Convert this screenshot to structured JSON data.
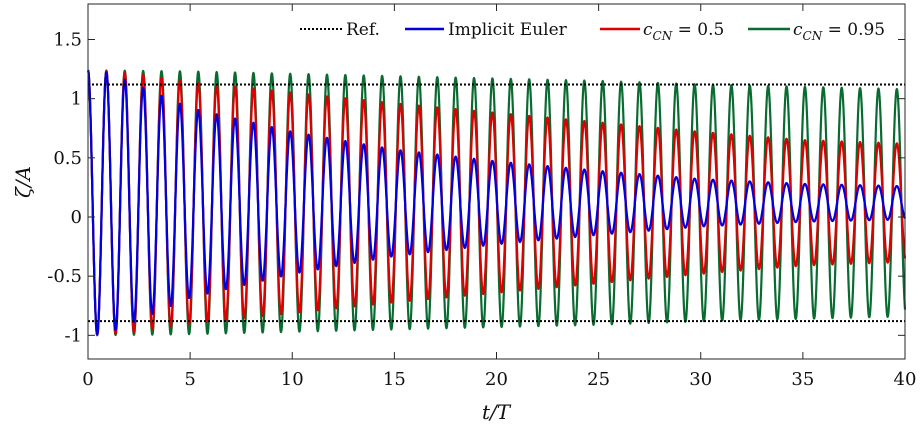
{
  "chart_data": {
    "type": "line",
    "xlabel": "t/T",
    "ylabel": "ζ/A",
    "xlim": [
      0,
      40
    ],
    "ylim": [
      -1.2,
      1.8
    ],
    "xticks": [
      "0",
      "5",
      "10",
      "15",
      "20",
      "25",
      "30",
      "35",
      "40"
    ],
    "yticks": [
      "-1",
      "-0.5",
      "0",
      "0.5",
      "1",
      "1.5"
    ],
    "grid": false,
    "legend_position": "top",
    "period": 0.9,
    "series": [
      {
        "name": "Ref.",
        "style": "dotted",
        "color": "#000000",
        "upper": 1.12,
        "lower": -0.88
      },
      {
        "name": "Implicit Euler",
        "color": "#0000dd",
        "envelope": [
          [
            0,
            1.12
          ],
          [
            1,
            1.1
          ],
          [
            3,
            0.95
          ],
          [
            5,
            0.8
          ],
          [
            7,
            0.72
          ],
          [
            10,
            0.6
          ],
          [
            15,
            0.45
          ],
          [
            20,
            0.35
          ],
          [
            25,
            0.27
          ],
          [
            30,
            0.2
          ],
          [
            35,
            0.16
          ],
          [
            40,
            0.14
          ]
        ]
      },
      {
        "name": "c_CN = 0.5",
        "color": "#dd0000",
        "envelope": [
          [
            0,
            1.12
          ],
          [
            2,
            1.1
          ],
          [
            5,
            1.02
          ],
          [
            10,
            0.93
          ],
          [
            15,
            0.84
          ],
          [
            20,
            0.76
          ],
          [
            25,
            0.68
          ],
          [
            30,
            0.6
          ],
          [
            35,
            0.53
          ],
          [
            40,
            0.5
          ]
        ]
      },
      {
        "name": "c_CN = 0.95",
        "color": "#0a6b30",
        "envelope": [
          [
            0,
            1.12
          ],
          [
            5,
            1.11
          ],
          [
            10,
            1.09
          ],
          [
            15,
            1.07
          ],
          [
            20,
            1.05
          ],
          [
            25,
            1.03
          ],
          [
            30,
            1.0
          ],
          [
            35,
            0.98
          ],
          [
            40,
            0.96
          ]
        ]
      }
    ],
    "legend_labels": {
      "ref": "Ref.",
      "euler": "Implicit Euler",
      "cn_prefix": "c",
      "cn_sub": "CN",
      "cn05_value": " = 0.5",
      "cn095_value": " = 0.95"
    }
  }
}
